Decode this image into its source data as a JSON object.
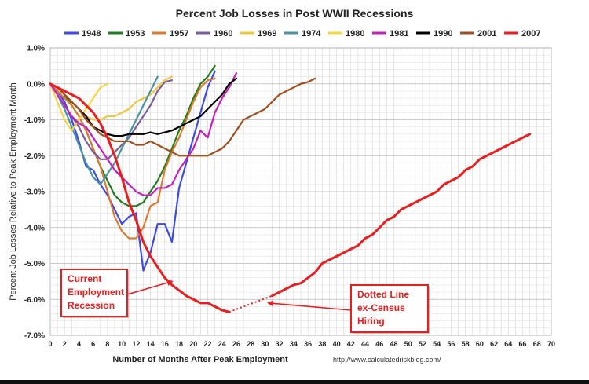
{
  "chart_data": {
    "type": "line",
    "title": "Percent Job Losses in Post WWII Recessions",
    "xlabel": "Number of Months After Peak Employment",
    "ylabel": "Percent Job Losses Relative to Peak Employment Month",
    "source": "http://www.calculatedriskblog.com/",
    "xlim": [
      0,
      70
    ],
    "ylim": [
      -7.0,
      1.0
    ],
    "x_ticks": [
      "0",
      "2",
      "4",
      "6",
      "8",
      "10",
      "12",
      "14",
      "16",
      "18",
      "20",
      "22",
      "24",
      "26",
      "28",
      "30",
      "32",
      "34",
      "36",
      "38",
      "40",
      "42",
      "44",
      "46",
      "48",
      "50",
      "52",
      "54",
      "56",
      "58",
      "60",
      "62",
      "64",
      "66",
      "68",
      "70"
    ],
    "y_ticks": [
      "1.0%",
      "0.0%",
      "-1.0%",
      "-2.0%",
      "-3.0%",
      "-4.0%",
      "-5.0%",
      "-6.0%",
      "-7.0%"
    ],
    "grid": true,
    "legend_position": "top",
    "series": [
      {
        "name": "1948",
        "color": "#3c4be3",
        "values": [
          0,
          -0.2,
          -0.5,
          -1.0,
          -1.6,
          -2.3,
          -2.4,
          -2.8,
          -3.1,
          -3.5,
          -3.9,
          -3.7,
          -3.6,
          -5.2,
          -4.7,
          -3.9,
          -3.9,
          -4.4,
          -2.9,
          -2.2,
          -1.5,
          -0.8,
          -0.1,
          0.35
        ]
      },
      {
        "name": "1953",
        "color": "#1e7f1e",
        "values": [
          0,
          -0.1,
          -0.3,
          -0.6,
          -0.9,
          -1.3,
          -1.8,
          -2.3,
          -2.7,
          -3.1,
          -3.3,
          -3.4,
          -3.4,
          -3.3,
          -3.0,
          -2.7,
          -2.3,
          -1.8,
          -1.3,
          -0.9,
          -0.4,
          0,
          0.2,
          0.5
        ]
      },
      {
        "name": "1957",
        "color": "#e07a2e",
        "values": [
          0,
          -0.2,
          -0.4,
          -0.6,
          -0.9,
          -1.3,
          -1.8,
          -2.3,
          -3.0,
          -3.7,
          -4.1,
          -4.3,
          -4.3,
          -4.0,
          -3.4,
          -3.3,
          -2.4,
          -1.9,
          -1.5,
          -1.0,
          -0.5,
          -0.1,
          0.1,
          0.15
        ]
      },
      {
        "name": "1960",
        "color": "#7b5c9e",
        "values": [
          0,
          -0.3,
          -0.6,
          -0.9,
          -1.2,
          -1.6,
          -1.9,
          -2.1,
          -2.1,
          -1.9,
          -1.7,
          -1.5,
          -1.2,
          -0.9,
          -0.6,
          -0.2,
          0.05,
          0.1
        ]
      },
      {
        "name": "1969",
        "color": "#f2c63a",
        "values": [
          0,
          -0.1,
          -0.3,
          -0.5,
          -0.7,
          -0.9,
          -1.0,
          -1.0,
          -0.9,
          -0.9,
          -0.8,
          -0.7,
          -0.5,
          -0.4,
          -0.3,
          -0.1,
          0.1,
          0.2
        ]
      },
      {
        "name": "1974",
        "color": "#4a93a6",
        "values": [
          0,
          -0.3,
          -0.7,
          -1.2,
          -1.7,
          -2.2,
          -2.6,
          -2.8,
          -2.5,
          -2.2,
          -1.8,
          -1.4,
          -1.0,
          -0.6,
          -0.2,
          0.2
        ]
      },
      {
        "name": "1980",
        "color": "#f5d640",
        "values": [
          0,
          -0.5,
          -1.0,
          -1.3,
          -1.0,
          -0.7,
          -0.4,
          -0.1,
          0.0
        ]
      },
      {
        "name": "1981",
        "color": "#c61fbd",
        "values": [
          0,
          -0.3,
          -0.6,
          -0.9,
          -1.1,
          -1.2,
          -1.5,
          -1.8,
          -2.1,
          -2.4,
          -2.6,
          -2.8,
          -3.0,
          -3.1,
          -3.1,
          -2.9,
          -2.9,
          -2.8,
          -2.4,
          -2.1,
          -1.8,
          -1.3,
          -1.5,
          -0.8,
          -0.4,
          -0.1,
          0.3
        ]
      },
      {
        "name": "1990",
        "color": "#000000",
        "values": [
          0,
          -0.1,
          -0.3,
          -0.5,
          -0.7,
          -0.9,
          -1.2,
          -1.3,
          -1.4,
          -1.45,
          -1.45,
          -1.4,
          -1.4,
          -1.4,
          -1.35,
          -1.4,
          -1.35,
          -1.3,
          -1.2,
          -1.1,
          -1.0,
          -0.9,
          -0.7,
          -0.5,
          -0.3,
          0,
          0.15
        ]
      },
      {
        "name": "2001",
        "color": "#a0501e",
        "values": [
          0,
          -0.1,
          -0.3,
          -0.5,
          -0.7,
          -1.0,
          -1.2,
          -1.4,
          -1.5,
          -1.6,
          -1.6,
          -1.6,
          -1.7,
          -1.7,
          -1.6,
          -1.7,
          -1.8,
          -1.9,
          -2.0,
          -2.0,
          -2.0,
          -2.0,
          -2.0,
          -1.9,
          -1.8,
          -1.6,
          -1.3,
          -1.0,
          -0.9,
          -0.8,
          -0.7,
          -0.5,
          -0.3,
          -0.2,
          -0.1,
          0.0,
          0.05,
          0.15
        ]
      },
      {
        "name": "2007",
        "color": "#ee1d1d",
        "values": [
          0,
          -0.1,
          -0.2,
          -0.3,
          -0.4,
          -0.6,
          -0.8,
          -1.1,
          -1.5,
          -2.0,
          -2.6,
          -3.3,
          -3.8,
          -4.4,
          -4.8,
          -5.1,
          -5.4,
          -5.6,
          -5.75,
          -5.9,
          -6.0,
          -6.1,
          -6.1,
          -6.2,
          -6.3,
          -6.35,
          -6.2,
          -6.0,
          -5.7,
          -5.8,
          -5.85,
          -5.9,
          -5.8,
          -5.7,
          -5.6,
          -5.55,
          -5.4,
          -5.25,
          -5.0,
          -4.9,
          -4.8,
          -4.7,
          -4.6,
          -4.5,
          -4.3,
          -4.2,
          -4.0,
          -3.8,
          -3.7,
          -3.5,
          -3.4,
          -3.3,
          -3.2,
          -3.1,
          -3.0,
          -2.8,
          -2.7,
          -2.6,
          -2.4,
          -2.3,
          -2.1,
          -2.0,
          -1.9,
          -1.8,
          -1.7,
          -1.6,
          -1.5,
          -1.4
        ]
      }
    ],
    "dotted_segment": {
      "series": "2007",
      "x": [
        25,
        31
      ],
      "y": [
        -6.35,
        -5.9
      ]
    },
    "annotations": [
      {
        "id": "current",
        "lines": [
          "Current",
          "Employment",
          "Recession"
        ],
        "arrow_to": {
          "x": 17,
          "y": -5.5
        }
      },
      {
        "id": "dotted",
        "lines": [
          "Dotted Line",
          "ex-Census",
          "Hiring"
        ],
        "arrow_to": {
          "x": 30.5,
          "y": -6.1
        }
      }
    ]
  }
}
